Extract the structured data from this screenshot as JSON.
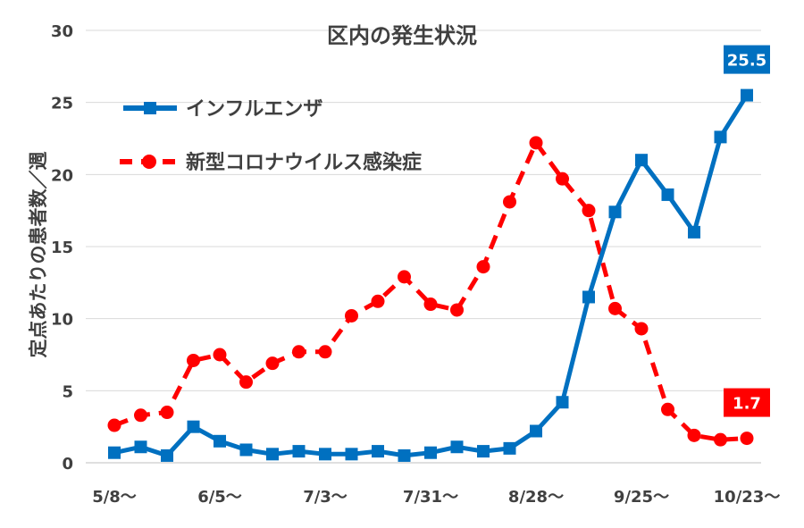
{
  "chart_data": {
    "type": "line",
    "title": "区内の発生状況",
    "ylabel": "定点あたりの患者数／週",
    "xlabel": "",
    "ylim": [
      0,
      30
    ],
    "yticks": [
      0,
      5,
      10,
      15,
      20,
      25,
      30
    ],
    "grid": true,
    "legend_position": "top-left",
    "x_tick_labels": [
      "5/8～",
      "6/5～",
      "7/3～",
      "7/31～",
      "8/28～",
      "9/25～",
      "10/23～"
    ],
    "x_tick_indices": [
      0,
      4,
      8,
      12,
      16,
      20,
      24
    ],
    "series": [
      {
        "name": "インフルエンザ",
        "color": "#0070C0",
        "style": "solid",
        "marker": "square",
        "values": [
          0.7,
          1.1,
          0.5,
          2.5,
          1.5,
          0.9,
          0.6,
          0.8,
          0.6,
          0.6,
          0.8,
          0.5,
          0.7,
          1.1,
          0.8,
          1.0,
          2.2,
          4.2,
          11.5,
          17.4,
          21.0,
          18.6,
          16.0,
          22.6,
          25.5
        ],
        "end_label": "25.5"
      },
      {
        "name": "新型コロナウイルス感染症",
        "color": "#FF0000",
        "style": "dashed",
        "marker": "circle",
        "values": [
          2.6,
          3.3,
          3.5,
          7.1,
          7.5,
          5.6,
          6.9,
          7.7,
          7.7,
          10.2,
          11.2,
          12.9,
          11.0,
          10.6,
          13.6,
          18.1,
          22.2,
          19.7,
          17.5,
          10.7,
          9.3,
          3.7,
          1.9,
          1.6,
          1.7
        ],
        "end_label": "1.7"
      }
    ]
  }
}
